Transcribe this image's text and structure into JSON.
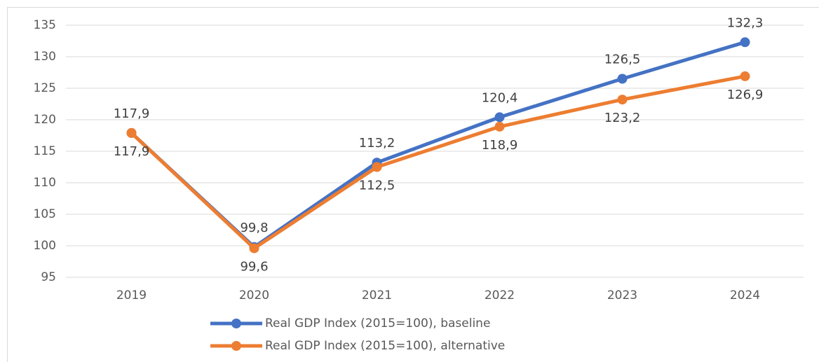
{
  "chart_data": {
    "type": "line",
    "categories": [
      "2019",
      "2020",
      "2021",
      "2022",
      "2023",
      "2024"
    ],
    "series": [
      {
        "name": "Real GDP Index (2015=100), baseline",
        "color": "#4472c4",
        "values": [
          117.9,
          99.8,
          113.2,
          120.4,
          126.5,
          132.3
        ],
        "value_labels": [
          "117,9",
          "99,8",
          "113,2",
          "120,4",
          "126,5",
          "132,3"
        ]
      },
      {
        "name": "Real GDP Index (2015=100), alternative",
        "color": "#ed7d31",
        "values": [
          117.9,
          99.6,
          112.5,
          118.9,
          123.2,
          126.9
        ],
        "value_labels": [
          "117,9",
          "99,6",
          "112,5",
          "118,9",
          "123,2",
          "126,9"
        ]
      }
    ],
    "ylim": [
      95,
      135
    ],
    "yticks": [
      95,
      100,
      105,
      110,
      115,
      120,
      125,
      130,
      135
    ],
    "grid": true,
    "legend": "bottom"
  }
}
